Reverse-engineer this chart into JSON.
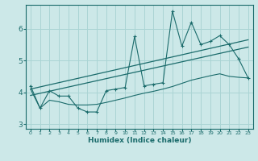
{
  "xlabel": "Humidex (Indice chaleur)",
  "ylabel": "",
  "bg_color": "#cce8e8",
  "grid_color": "#aad4d4",
  "line_color": "#1a6b6b",
  "xlim": [
    -0.5,
    23.5
  ],
  "ylim": [
    2.85,
    6.75
  ],
  "yticks": [
    3,
    4,
    5,
    6
  ],
  "xtick_labels": [
    "0",
    "1",
    "2",
    "3",
    "4",
    "5",
    "6",
    "7",
    "8",
    "9",
    "10",
    "11",
    "12",
    "13",
    "14",
    "15",
    "16",
    "17",
    "18",
    "19",
    "20",
    "21",
    "22",
    "23"
  ],
  "main_x": [
    0,
    1,
    2,
    3,
    4,
    5,
    6,
    7,
    8,
    9,
    10,
    11,
    12,
    13,
    14,
    15,
    16,
    17,
    18,
    19,
    20,
    21,
    22,
    23
  ],
  "main_y": [
    4.2,
    3.5,
    4.05,
    3.88,
    3.88,
    3.5,
    3.38,
    3.38,
    4.05,
    4.1,
    4.15,
    5.75,
    4.2,
    4.25,
    4.3,
    6.55,
    5.45,
    6.2,
    5.5,
    5.6,
    5.78,
    5.5,
    5.05,
    4.45
  ],
  "trend1_x": [
    0,
    23
  ],
  "trend1_y": [
    4.1,
    5.65
  ],
  "trend2_x": [
    0,
    23
  ],
  "trend2_y": [
    3.9,
    5.42
  ],
  "bottom_x": [
    0,
    1,
    2,
    3,
    4,
    5,
    6,
    7,
    8,
    9,
    10,
    11,
    12,
    13,
    14,
    15,
    16,
    17,
    18,
    19,
    20,
    21,
    22,
    23
  ],
  "bottom_y": [
    4.1,
    3.5,
    3.75,
    3.7,
    3.62,
    3.6,
    3.6,
    3.62,
    3.68,
    3.75,
    3.82,
    3.9,
    3.97,
    4.03,
    4.1,
    4.18,
    4.28,
    4.38,
    4.45,
    4.52,
    4.58,
    4.5,
    4.47,
    4.45
  ]
}
